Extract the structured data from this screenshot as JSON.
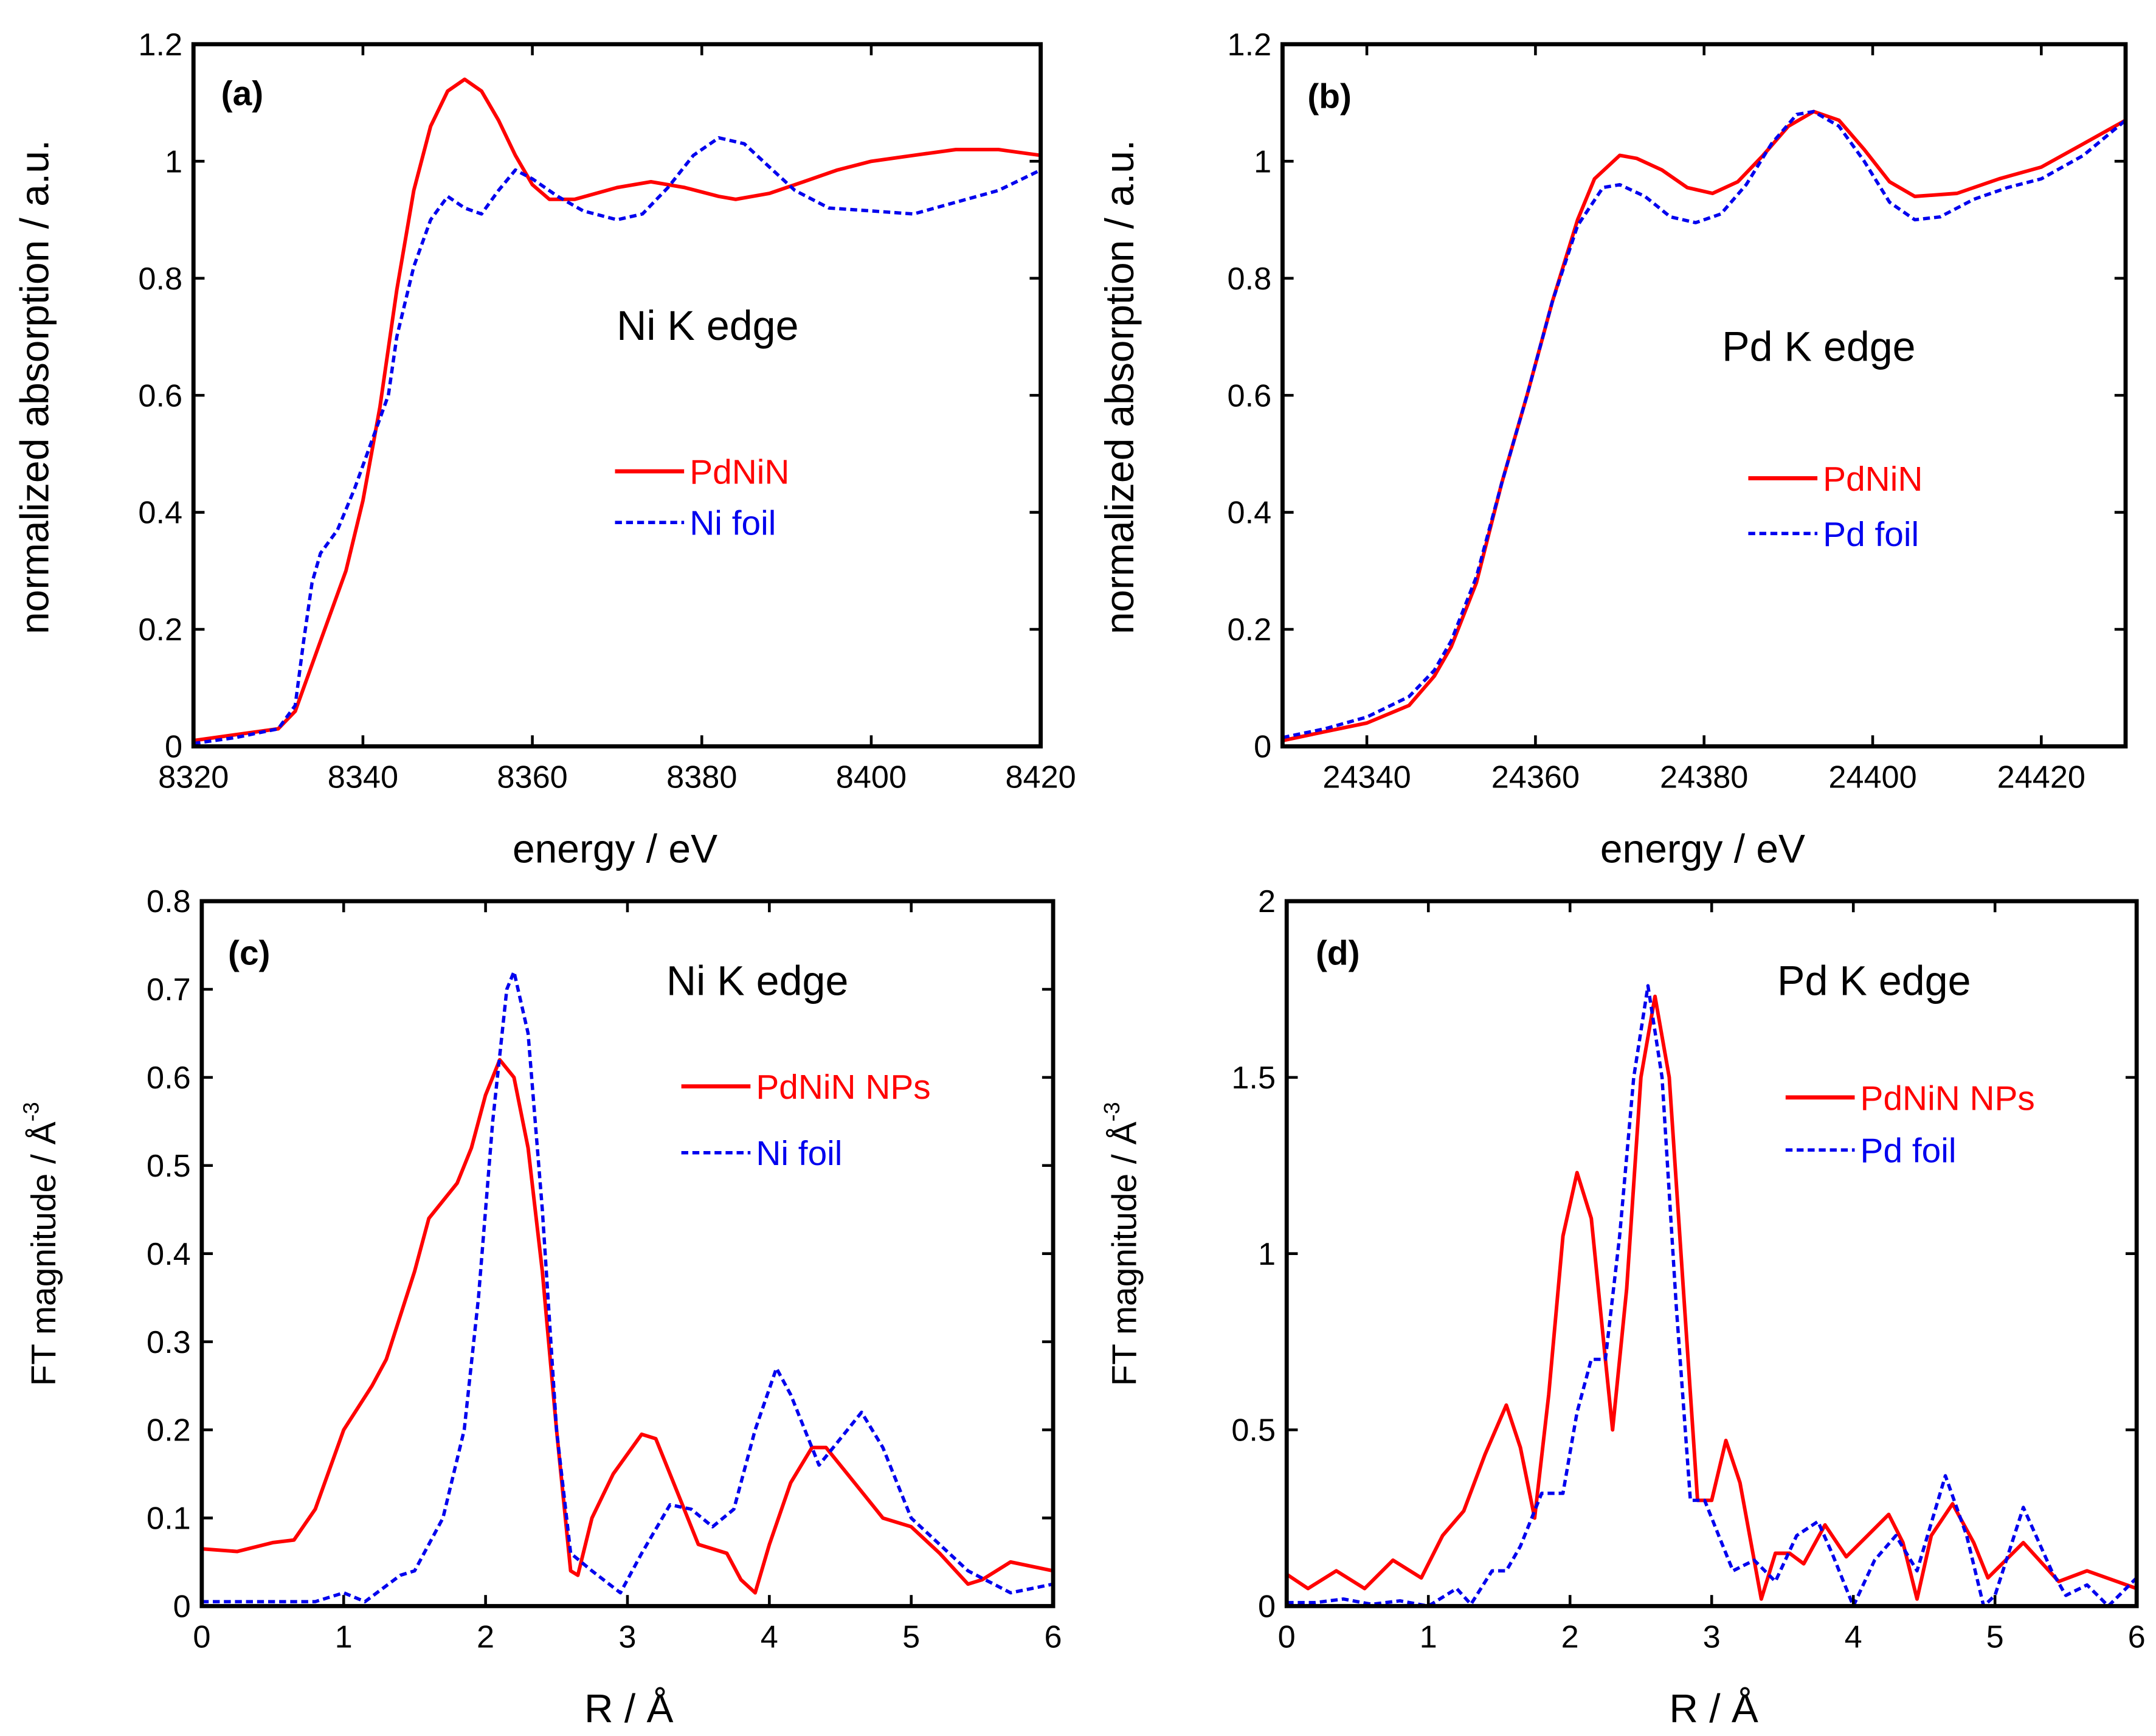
{
  "colors": {
    "pdnin": "#ff0000",
    "foil": "#0000ee",
    "axis": "#000000"
  },
  "chart_data": [
    {
      "type": "line",
      "panel_label": "(a)",
      "annotation": "Ni K edge",
      "xlabel": "energy / eV",
      "ylabel": "normalized absorption / a.u.",
      "xlim": [
        8320,
        8420
      ],
      "ylim": [
        0,
        1.2
      ],
      "xticks": [
        8320,
        8340,
        8360,
        8380,
        8400,
        8420
      ],
      "xtick_labels": [
        "8320",
        "8340",
        "8360",
        "8380",
        "8400",
        "8420"
      ],
      "yticks": [
        0,
        0.2,
        0.4,
        0.6,
        0.8,
        1.0,
        1.2
      ],
      "ytick_labels": [
        "0",
        "0.2",
        "0.4",
        "0.6",
        "0.8",
        "1",
        "1.2"
      ],
      "legend_position": "center-right",
      "series": [
        {
          "name": "PdNiN",
          "style": "solid",
          "x": [
            8320,
            8325,
            8330,
            8332,
            8335,
            8338,
            8340,
            8342,
            8344,
            8346,
            8348,
            8350,
            8352,
            8354,
            8356,
            8358,
            8360,
            8362,
            8365,
            8370,
            8374,
            8378,
            8382,
            8384,
            8388,
            8392,
            8396,
            8400,
            8405,
            8410,
            8415,
            8420
          ],
          "y": [
            0.01,
            0.02,
            0.03,
            0.06,
            0.18,
            0.3,
            0.42,
            0.58,
            0.78,
            0.95,
            1.06,
            1.12,
            1.14,
            1.12,
            1.07,
            1.01,
            0.96,
            0.935,
            0.935,
            0.955,
            0.965,
            0.955,
            0.94,
            0.935,
            0.945,
            0.965,
            0.985,
            1.0,
            1.01,
            1.02,
            1.02,
            1.01
          ]
        },
        {
          "name": "Ni foil",
          "style": "dashed",
          "x": [
            8320,
            8325,
            8330,
            8332,
            8333,
            8334,
            8335,
            8337,
            8339,
            8341,
            8343,
            8344,
            8346,
            8348,
            8350,
            8352,
            8354,
            8356,
            8358,
            8360,
            8363,
            8366,
            8370,
            8373,
            8376,
            8379,
            8382,
            8385,
            8388,
            8391,
            8395,
            8400,
            8405,
            8410,
            8415,
            8420
          ],
          "y": [
            0.005,
            0.015,
            0.03,
            0.07,
            0.18,
            0.28,
            0.33,
            0.37,
            0.44,
            0.52,
            0.6,
            0.7,
            0.82,
            0.9,
            0.94,
            0.92,
            0.91,
            0.95,
            0.985,
            0.97,
            0.94,
            0.915,
            0.9,
            0.91,
            0.955,
            1.01,
            1.04,
            1.03,
            0.99,
            0.95,
            0.92,
            0.915,
            0.91,
            0.93,
            0.95,
            0.985
          ]
        }
      ]
    },
    {
      "type": "line",
      "panel_label": "(b)",
      "annotation": "Pd K edge",
      "xlabel": "energy  /  eV",
      "ylabel": "normalized absorption / a.u.",
      "xlim": [
        24330,
        24430
      ],
      "ylim": [
        0,
        1.2
      ],
      "xticks": [
        24340,
        24360,
        24380,
        24400,
        24420
      ],
      "xtick_labels": [
        "24340",
        "24360",
        "24380",
        "24400",
        "24420"
      ],
      "yticks": [
        0,
        0.2,
        0.4,
        0.6,
        0.8,
        1.0,
        1.2
      ],
      "ytick_labels": [
        "0",
        "0.2",
        "0.4",
        "0.6",
        "0.8",
        "1",
        "1.2"
      ],
      "legend_position": "center-right",
      "series": [
        {
          "name": "PdNiN",
          "style": "solid",
          "x": [
            24330,
            24335,
            24340,
            24345,
            24348,
            24350,
            24353,
            24356,
            24359,
            24362,
            24365,
            24367,
            24370,
            24372,
            24375,
            24378,
            24381,
            24384,
            24387,
            24390,
            24393,
            24396,
            24399,
            24402,
            24405,
            24410,
            24415,
            24420,
            24425,
            24430
          ],
          "y": [
            0.01,
            0.025,
            0.04,
            0.07,
            0.12,
            0.17,
            0.28,
            0.45,
            0.6,
            0.76,
            0.9,
            0.97,
            1.01,
            1.005,
            0.985,
            0.955,
            0.945,
            0.965,
            1.01,
            1.06,
            1.085,
            1.07,
            1.02,
            0.965,
            0.94,
            0.945,
            0.97,
            0.99,
            1.03,
            1.07
          ]
        },
        {
          "name": "Pd foil",
          "style": "dashed",
          "x": [
            24330,
            24335,
            24340,
            24345,
            24348,
            24350,
            24353,
            24356,
            24359,
            24362,
            24365,
            24368,
            24370,
            24373,
            24376,
            24379,
            24382,
            24385,
            24388,
            24391,
            24393,
            24396,
            24399,
            24402,
            24405,
            24408,
            24412,
            24416,
            24420,
            24425,
            24430
          ],
          "y": [
            0.015,
            0.03,
            0.05,
            0.085,
            0.13,
            0.18,
            0.29,
            0.45,
            0.6,
            0.76,
            0.89,
            0.955,
            0.96,
            0.94,
            0.905,
            0.895,
            0.91,
            0.96,
            1.03,
            1.08,
            1.085,
            1.06,
            1.0,
            0.93,
            0.9,
            0.905,
            0.935,
            0.955,
            0.97,
            1.01,
            1.07
          ]
        }
      ]
    },
    {
      "type": "line",
      "panel_label": "(c)",
      "annotation": "Ni K edge",
      "xlabel": "R  /  Å",
      "ylabel": "FT magnitude  /  Å",
      "ylabel_sup": "-3",
      "xlim": [
        0,
        6
      ],
      "ylim": [
        0,
        0.8
      ],
      "xticks": [
        0,
        1,
        2,
        3,
        4,
        5,
        6
      ],
      "xtick_labels": [
        "0",
        "1",
        "2",
        "3",
        "4",
        "5",
        "6"
      ],
      "yticks": [
        0,
        0.1,
        0.2,
        0.3,
        0.4,
        0.5,
        0.6,
        0.7,
        0.8
      ],
      "ytick_labels": [
        "0",
        "0.1",
        "0.2",
        "0.3",
        "0.4",
        "0.5",
        "0.6",
        "0.7",
        "0.8"
      ],
      "legend_position": "upper-right",
      "series": [
        {
          "name": "PdNiN NPs",
          "style": "solid",
          "x": [
            0,
            0.25,
            0.5,
            0.65,
            0.8,
            1.0,
            1.2,
            1.3,
            1.5,
            1.6,
            1.8,
            1.9,
            2.0,
            2.1,
            2.2,
            2.3,
            2.4,
            2.5,
            2.6,
            2.65,
            2.75,
            2.9,
            3.1,
            3.2,
            3.35,
            3.5,
            3.7,
            3.8,
            3.9,
            4.0,
            4.15,
            4.3,
            4.4,
            4.6,
            4.8,
            5.0,
            5.2,
            5.4,
            5.5,
            5.7,
            6.0
          ],
          "y": [
            0.065,
            0.062,
            0.072,
            0.075,
            0.11,
            0.2,
            0.25,
            0.28,
            0.38,
            0.44,
            0.48,
            0.52,
            0.58,
            0.62,
            0.6,
            0.52,
            0.38,
            0.2,
            0.04,
            0.035,
            0.1,
            0.15,
            0.195,
            0.19,
            0.13,
            0.07,
            0.06,
            0.03,
            0.015,
            0.07,
            0.14,
            0.18,
            0.18,
            0.14,
            0.1,
            0.09,
            0.06,
            0.025,
            0.03,
            0.05,
            0.04
          ]
        },
        {
          "name": "Ni foil",
          "style": "dashed",
          "x": [
            0,
            0.5,
            0.8,
            1.0,
            1.15,
            1.4,
            1.5,
            1.7,
            1.85,
            1.95,
            2.05,
            2.15,
            2.2,
            2.3,
            2.4,
            2.5,
            2.6,
            2.75,
            2.95,
            3.1,
            3.3,
            3.45,
            3.6,
            3.75,
            3.9,
            4.05,
            4.15,
            4.35,
            4.45,
            4.65,
            4.8,
            5.0,
            5.2,
            5.4,
            5.7,
            6.0
          ],
          "y": [
            0.005,
            0.005,
            0.005,
            0.015,
            0.005,
            0.035,
            0.04,
            0.1,
            0.2,
            0.35,
            0.55,
            0.7,
            0.72,
            0.65,
            0.45,
            0.2,
            0.06,
            0.04,
            0.015,
            0.06,
            0.115,
            0.11,
            0.09,
            0.11,
            0.2,
            0.27,
            0.24,
            0.16,
            0.18,
            0.22,
            0.18,
            0.1,
            0.07,
            0.04,
            0.015,
            0.025
          ]
        }
      ]
    },
    {
      "type": "line",
      "panel_label": "(d)",
      "annotation": "Pd K edge",
      "xlabel": "R  /  Å",
      "ylabel": "FT magnitude  /  Å",
      "ylabel_sup": "-3",
      "xlim": [
        0,
        6
      ],
      "ylim": [
        0,
        2
      ],
      "xticks": [
        0,
        1,
        2,
        3,
        4,
        5,
        6
      ],
      "xtick_labels": [
        "0",
        "1",
        "2",
        "3",
        "4",
        "5",
        "6"
      ],
      "yticks": [
        0,
        0.5,
        1,
        1.5,
        2
      ],
      "ytick_labels": [
        "0",
        "0.5",
        "1",
        "1.5",
        "2"
      ],
      "legend_position": "upper-right",
      "series": [
        {
          "name": "PdNiN NPs",
          "style": "solid",
          "x": [
            0,
            0.15,
            0.35,
            0.55,
            0.75,
            0.95,
            1.1,
            1.25,
            1.4,
            1.55,
            1.65,
            1.75,
            1.85,
            1.95,
            2.05,
            2.15,
            2.25,
            2.3,
            2.4,
            2.5,
            2.6,
            2.7,
            2.8,
            2.9,
            3.0,
            3.1,
            3.2,
            3.35,
            3.45,
            3.55,
            3.65,
            3.8,
            3.95,
            4.1,
            4.25,
            4.35,
            4.45,
            4.55,
            4.7,
            4.85,
            4.95,
            5.2,
            5.45,
            5.65,
            6.0
          ],
          "y": [
            0.09,
            0.05,
            0.1,
            0.05,
            0.13,
            0.08,
            0.2,
            0.27,
            0.43,
            0.57,
            0.45,
            0.25,
            0.6,
            1.05,
            1.23,
            1.1,
            0.7,
            0.5,
            0.9,
            1.5,
            1.73,
            1.5,
            0.9,
            0.3,
            0.3,
            0.47,
            0.35,
            0.02,
            0.15,
            0.15,
            0.12,
            0.23,
            0.14,
            0.2,
            0.26,
            0.18,
            0.02,
            0.2,
            0.29,
            0.18,
            0.08,
            0.18,
            0.07,
            0.1,
            0.05
          ]
        },
        {
          "name": "Pd foil",
          "style": "dashed",
          "x": [
            0,
            0.2,
            0.4,
            0.6,
            0.8,
            1.0,
            1.2,
            1.3,
            1.45,
            1.55,
            1.65,
            1.8,
            1.95,
            2.05,
            2.15,
            2.25,
            2.35,
            2.45,
            2.55,
            2.65,
            2.75,
            2.85,
            2.95,
            3.05,
            3.15,
            3.3,
            3.45,
            3.6,
            3.75,
            3.85,
            4.0,
            4.15,
            4.3,
            4.45,
            4.65,
            4.8,
            4.92,
            5.0,
            5.2,
            5.4,
            5.5,
            5.65,
            5.8,
            6.0
          ],
          "y": [
            0.01,
            0.01,
            0.02,
            0.005,
            0.015,
            0.0,
            0.05,
            0.005,
            0.1,
            0.1,
            0.17,
            0.32,
            0.32,
            0.55,
            0.7,
            0.7,
            1.05,
            1.5,
            1.76,
            1.5,
            0.85,
            0.3,
            0.3,
            0.2,
            0.1,
            0.13,
            0.07,
            0.2,
            0.24,
            0.15,
            0.0,
            0.13,
            0.2,
            0.1,
            0.37,
            0.2,
            0.0,
            0.03,
            0.28,
            0.1,
            0.03,
            0.06,
            0.0,
            0.08
          ]
        }
      ]
    }
  ]
}
